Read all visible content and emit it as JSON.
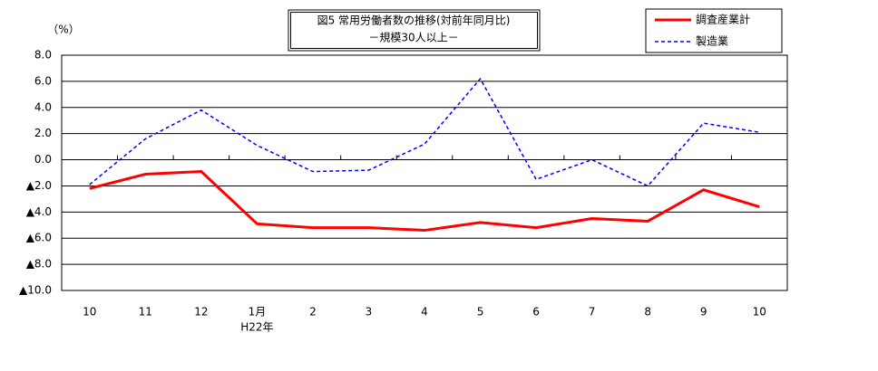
{
  "chart_data": {
    "type": "line",
    "title": "図5 常用労働者数の推移(対前年同月比)",
    "subtitle": "－規模30人以上－",
    "y_unit": "（%）",
    "categories": [
      "10",
      "11",
      "12",
      "1月",
      "2",
      "3",
      "4",
      "5",
      "6",
      "7",
      "8",
      "9",
      "10"
    ],
    "x_sub_labels": [
      null,
      null,
      null,
      "H22年",
      null,
      null,
      null,
      null,
      null,
      null,
      null,
      null,
      null
    ],
    "series": [
      {
        "name": "調査産業計",
        "color": "#ff0000",
        "dash": false,
        "values": [
          -2.2,
          -1.1,
          -0.9,
          -4.9,
          -5.2,
          -5.2,
          -5.4,
          -4.8,
          -5.2,
          -4.5,
          -4.7,
          -2.3,
          -3.6
        ]
      },
      {
        "name": "製造業",
        "color": "#0000ff",
        "dash": true,
        "values": [
          -1.9,
          1.6,
          3.8,
          1.1,
          -0.9,
          -0.8,
          1.2,
          6.2,
          -1.5,
          0.0,
          -2.0,
          2.8,
          2.1
        ]
      }
    ],
    "ylim": [
      -10,
      8
    ],
    "yticks": [
      {
        "value": 8,
        "label": "8.0"
      },
      {
        "value": 6,
        "label": "6.0"
      },
      {
        "value": 4,
        "label": "4.0"
      },
      {
        "value": 2,
        "label": "2.0"
      },
      {
        "value": 0,
        "label": "0.0"
      },
      {
        "value": -2,
        "label": "▲2.0"
      },
      {
        "value": -4,
        "label": "▲4.0"
      },
      {
        "value": -6,
        "label": "▲6.0"
      },
      {
        "value": -8,
        "label": "▲8.0"
      },
      {
        "value": -10,
        "label": "▲10.0"
      }
    ],
    "grid": true,
    "legend": "top-right"
  }
}
